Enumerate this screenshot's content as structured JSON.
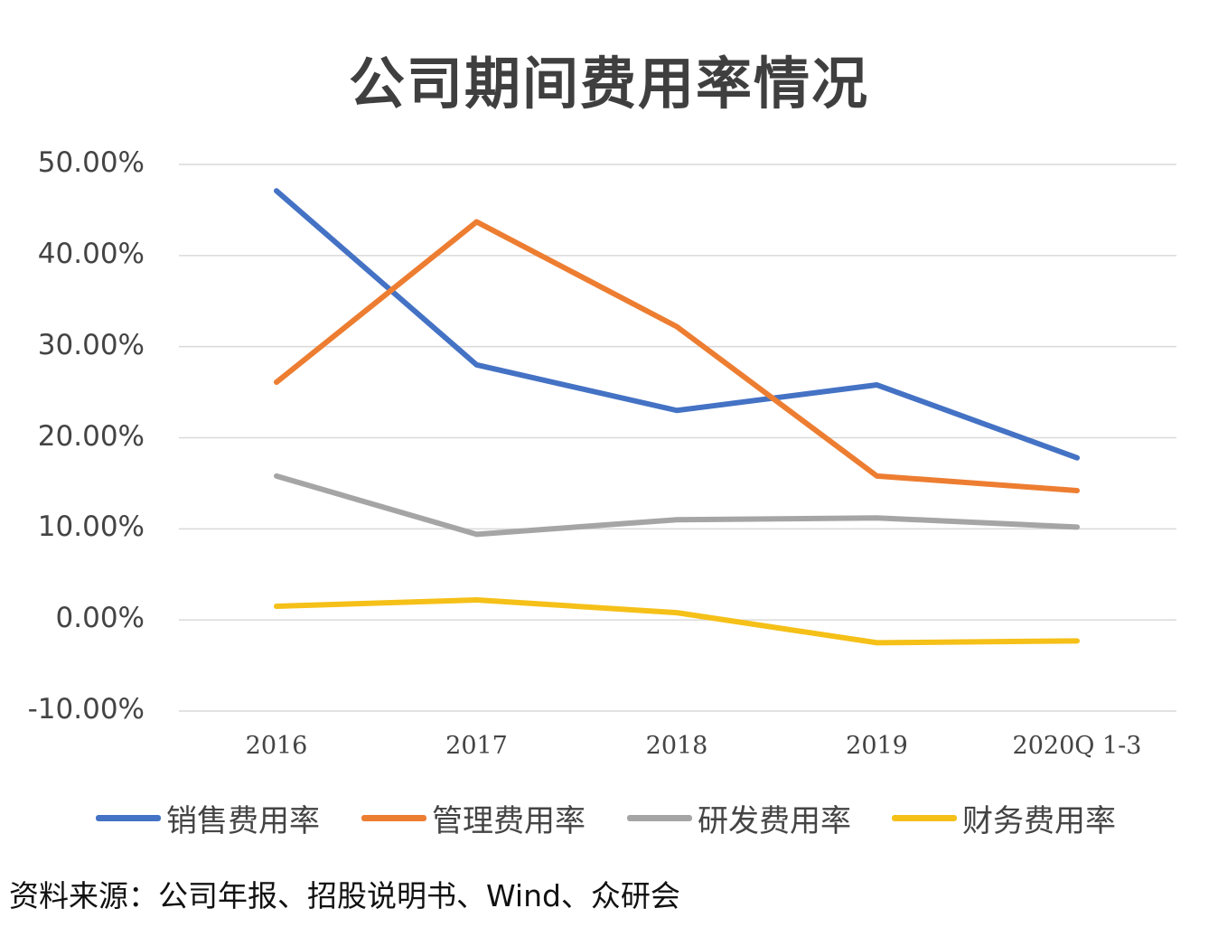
{
  "chart_data": {
    "type": "line",
    "title": "公司期间费用率情况",
    "categories": [
      "2016",
      "2017",
      "2018",
      "2019",
      "2020Q 1-3"
    ],
    "y_tick_labels": [
      "50.00%",
      "40.00%",
      "30.00%",
      "20.00%",
      "10.00%",
      "0.00%",
      "-10.00%"
    ],
    "ylim": [
      -10,
      50
    ],
    "grid": true,
    "legend_position": "bottom",
    "series": [
      {
        "name": "销售费用率",
        "color": "#4472C4",
        "values": [
          47.1,
          28.0,
          23.0,
          25.8,
          17.8
        ]
      },
      {
        "name": "管理费用率",
        "color": "#ED7D31",
        "values": [
          26.1,
          43.7,
          32.2,
          15.8,
          14.2
        ]
      },
      {
        "name": "研发费用率",
        "color": "#A5A5A5",
        "values": [
          15.8,
          9.4,
          11.0,
          11.2,
          10.2
        ]
      },
      {
        "name": "财务费用率",
        "color": "#F5C018",
        "values": [
          1.5,
          2.2,
          0.8,
          -2.5,
          -2.3
        ]
      }
    ]
  },
  "source": "资料来源：公司年报、招股说明书、Wind、众研会"
}
